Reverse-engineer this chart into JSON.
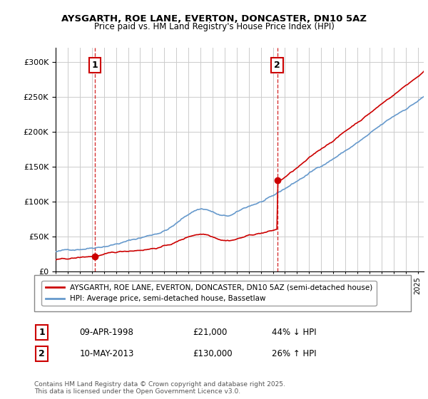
{
  "title1": "AYSGARTH, ROE LANE, EVERTON, DONCASTER, DN10 5AZ",
  "title2": "Price paid vs. HM Land Registry's House Price Index (HPI)",
  "ylabel": "",
  "ylim": [
    0,
    320000
  ],
  "yticks": [
    0,
    50000,
    100000,
    150000,
    200000,
    250000,
    300000
  ],
  "ytick_labels": [
    "£0",
    "£50K",
    "£100K",
    "£150K",
    "£200K",
    "£250K",
    "£300K"
  ],
  "transaction1": {
    "date_year": 1998.27,
    "price": 21000,
    "label": "1"
  },
  "transaction2": {
    "date_year": 2013.36,
    "price": 130000,
    "label": "2"
  },
  "legend_line1": "AYSGARTH, ROE LANE, EVERTON, DONCASTER, DN10 5AZ (semi-detached house)",
  "legend_line2": "HPI: Average price, semi-detached house, Bassetlaw",
  "table_row1": [
    "1",
    "09-APR-1998",
    "£21,000",
    "44% ↓ HPI"
  ],
  "table_row2": [
    "2",
    "10-MAY-2013",
    "£130,000",
    "26% ↑ HPI"
  ],
  "footer": "Contains HM Land Registry data © Crown copyright and database right 2025.\nThis data is licensed under the Open Government Licence v3.0.",
  "line_color_red": "#cc0000",
  "line_color_blue": "#6699cc",
  "bg_color": "#ffffff",
  "grid_color": "#cccccc",
  "vline_color": "#cc0000"
}
